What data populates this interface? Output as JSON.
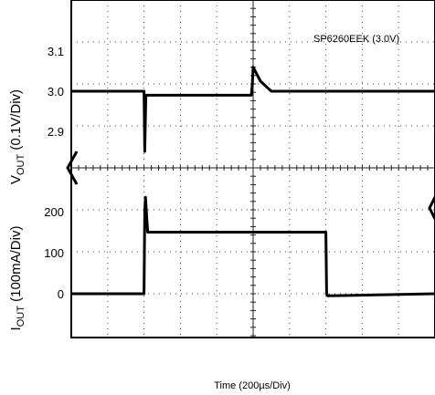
{
  "chart_data": {
    "type": "line",
    "annotation": "SP6260EEK (3.0V)",
    "xlabel": "Time (200µs/Div)",
    "x_divisions": 10,
    "top_panel": {
      "ylabel_main": "V",
      "ylabel_sub": "OUT",
      "ylabel_rest": " (0.1V/Div)",
      "ticks": [
        "3.1",
        "3.0",
        "2.9"
      ],
      "tick_values": [
        3.1,
        3.0,
        2.9
      ],
      "ylim": [
        2.8,
        3.2
      ],
      "series": [
        {
          "x": [
            0,
            2.0,
            2.02,
            2.05,
            2.1,
            4.95,
            4.98,
            5.0,
            5.2,
            5.5,
            10
          ],
          "y": [
            3.0,
            3.0,
            2.85,
            2.99,
            2.99,
            2.99,
            3.02,
            3.06,
            3.025,
            3.0,
            3.0
          ]
        }
      ]
    },
    "bottom_panel": {
      "ylabel_main": "I",
      "ylabel_sub": "OUT",
      "ylabel_rest": " (100mA/Div)",
      "ticks": [
        "200",
        "100",
        "0"
      ],
      "tick_values": [
        200,
        100,
        0
      ],
      "ylim": [
        -50,
        250
      ],
      "series": [
        {
          "x": [
            0,
            2.0,
            2.02,
            2.04,
            2.1,
            7.0,
            7.02,
            7.05,
            10
          ],
          "y": [
            0,
            0,
            200,
            235,
            150,
            150,
            0,
            -5,
            0
          ]
        }
      ]
    }
  }
}
